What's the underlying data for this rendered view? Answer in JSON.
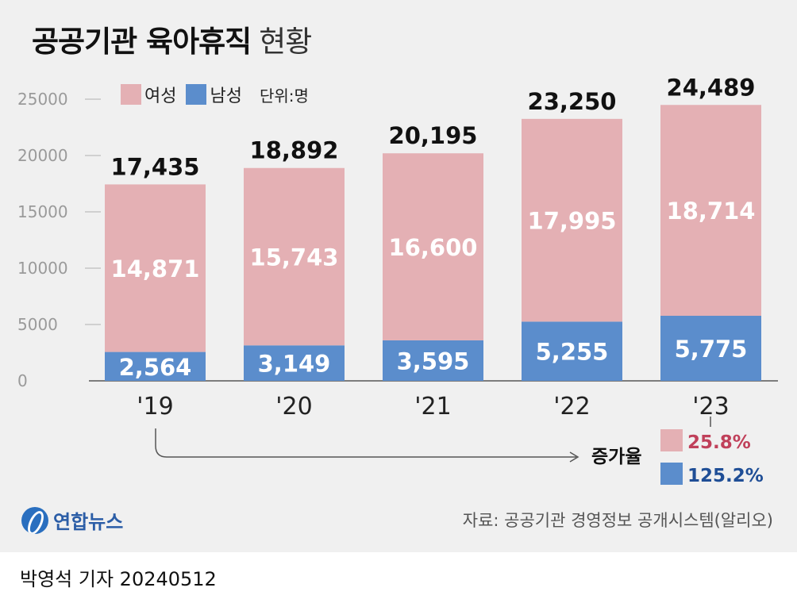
{
  "title": {
    "bold": "공공기관 육아휴직",
    "light": "현황"
  },
  "legend": {
    "female": "여성",
    "male": "남성",
    "unit": "단위:명"
  },
  "colors": {
    "female": "#e4b0b4",
    "male": "#5b8dcc",
    "female_pct": "#c0405a",
    "male_pct": "#1f4e96"
  },
  "chart_data": {
    "type": "bar",
    "stacked": true,
    "categories": [
      "'19",
      "'20",
      "'21",
      "'22",
      "'23"
    ],
    "series": [
      {
        "name": "남성",
        "values": [
          2564,
          3149,
          3595,
          5255,
          5775
        ],
        "labels": [
          "2,564",
          "3,149",
          "3,595",
          "5,255",
          "5,775"
        ]
      },
      {
        "name": "여성",
        "values": [
          14871,
          15743,
          16600,
          17995,
          18714
        ],
        "labels": [
          "14,871",
          "15,743",
          "16,600",
          "17,995",
          "18,714"
        ]
      }
    ],
    "totals": [
      17435,
      18892,
      20195,
      23250,
      24489
    ],
    "total_labels": [
      "17,435",
      "18,892",
      "20,195",
      "23,250",
      "24,489"
    ],
    "ylim": [
      0,
      25000
    ],
    "yticks": [
      0,
      5000,
      10000,
      15000,
      20000,
      25000
    ],
    "ytick_labels": [
      "0",
      "5000",
      "10000",
      "15000",
      "20000",
      "25000"
    ],
    "growth": {
      "label": "증가율",
      "female": "25.8%",
      "male": "125.2%"
    }
  },
  "source": "자료: 공공기관 경영정보 공개시스템(알리오)",
  "logo": "연합뉴스",
  "credit": {
    "name": "박영석 기자",
    "date": "20240512"
  }
}
